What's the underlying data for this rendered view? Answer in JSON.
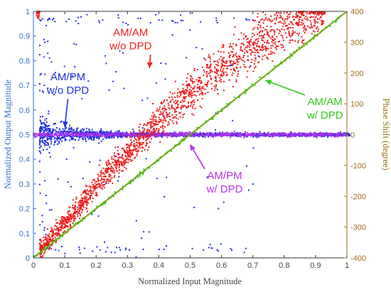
{
  "chart_data": {
    "type": "scatter",
    "xlabel": "Normalized Input Magnitude",
    "ylabel_left": "Normalized Output Magnitude",
    "ylabel_right": "Phase Shift (degree)",
    "xlim": [
      0,
      1
    ],
    "ylim_left": [
      0,
      1
    ],
    "ylim_right": [
      -400,
      400
    ],
    "x_ticks": [
      "0",
      "0.1",
      "0.2",
      "0.3",
      "0.4",
      "0.5",
      "0.6",
      "0.7",
      "0.8",
      "0.9",
      "1"
    ],
    "y_left_ticks": [
      "0",
      "0.1",
      "0.2",
      "0.3",
      "0.4",
      "0.5",
      "0.6",
      "0.7",
      "0.8",
      "0.9",
      "1"
    ],
    "y_right_ticks": [
      "-400",
      "-300",
      "-200",
      "-100",
      "0",
      "100",
      "200",
      "300",
      "400"
    ],
    "grid": false,
    "colors": {
      "left_axis": "#2e6fd0",
      "right_axis": "#a26b15",
      "am_am_wo_dpd": "#ee1b1b",
      "am_pm_wo_dpd": "#1f2fe0",
      "am_am_w_dpd": "#33cc1a",
      "am_pm_w_dpd": "#b531e8",
      "ideal_line": "#ad8a14"
    },
    "series": [
      {
        "name": "AM/AM w/o DPD",
        "kind": "scatter",
        "axis": "left",
        "points": [
          [
            0.02,
            0.03
          ],
          [
            0.1,
            0.14
          ],
          [
            0.2,
            0.29
          ],
          [
            0.3,
            0.43
          ],
          [
            0.4,
            0.56
          ],
          [
            0.5,
            0.67
          ],
          [
            0.6,
            0.77
          ],
          [
            0.7,
            0.86
          ],
          [
            0.8,
            0.93
          ],
          [
            0.87,
            0.97
          ],
          [
            0.93,
            1.0
          ]
        ]
      },
      {
        "name": "AM/PM w/o DPD",
        "kind": "scatter",
        "axis": "right",
        "points": [
          [
            0.02,
            0
          ],
          [
            0.05,
            0
          ],
          [
            0.1,
            0
          ],
          [
            0.2,
            0
          ],
          [
            0.3,
            0
          ],
          [
            0.4,
            0
          ],
          [
            0.5,
            0
          ],
          [
            0.6,
            0
          ],
          [
            0.7,
            0
          ],
          [
            0.8,
            0
          ],
          [
            0.9,
            0
          ],
          [
            1.0,
            0
          ]
        ]
      },
      {
        "name": "AM/AM w/ DPD",
        "kind": "line",
        "axis": "left",
        "points": [
          [
            0.0,
            0.0
          ],
          [
            0.25,
            0.25
          ],
          [
            0.5,
            0.5
          ],
          [
            0.75,
            0.75
          ],
          [
            1.0,
            1.0
          ]
        ]
      },
      {
        "name": "AM/PM w/ DPD",
        "kind": "line",
        "axis": "right",
        "points": [
          [
            0.0,
            0
          ],
          [
            0.5,
            0
          ],
          [
            1.0,
            0
          ]
        ]
      }
    ],
    "annotations": [
      {
        "lines": [
          "AM/AM",
          "w/o DPD"
        ],
        "color": "#ee1b1b",
        "x": 0.31,
        "y": 0.9,
        "arrow_to": [
          0.37,
          0.77
        ]
      },
      {
        "lines": [
          "AM/PM",
          "w/o DPD"
        ],
        "color": "#1f2fe0",
        "x": 0.11,
        "y": 0.72,
        "arrow_to": [
          0.1,
          0.53
        ]
      },
      {
        "lines": [
          "AM/AM",
          "w/ DPD"
        ],
        "color": "#33cc1a",
        "x": 0.93,
        "y": 0.62,
        "arrow_to": [
          0.74,
          0.72
        ]
      },
      {
        "lines": [
          "AM/PM",
          "w/ DPD"
        ],
        "color": "#b531e8",
        "x": 0.61,
        "y": 0.32,
        "arrow_to": [
          0.5,
          0.46
        ]
      }
    ]
  }
}
